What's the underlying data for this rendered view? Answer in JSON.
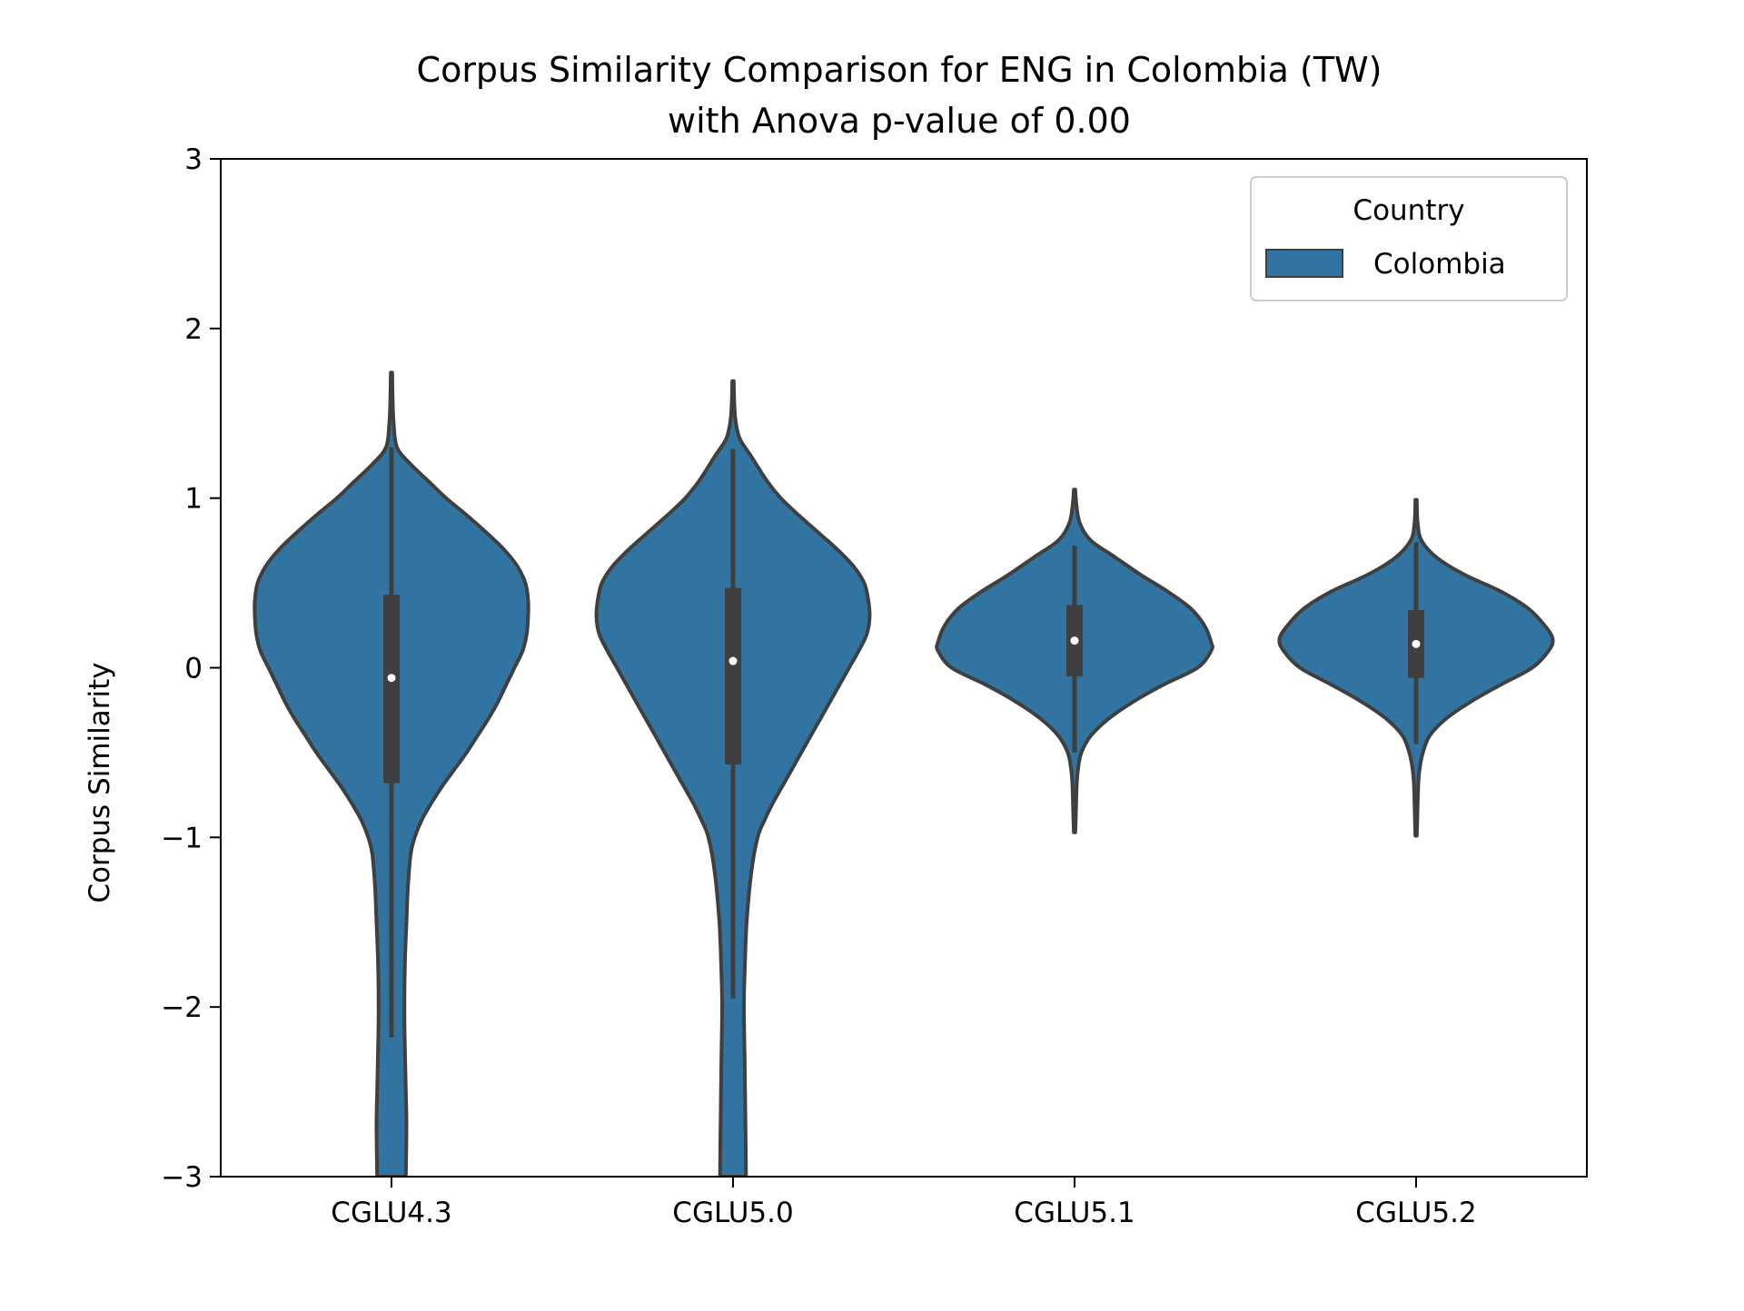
{
  "chart_data": {
    "type": "violin",
    "title_line1": "Corpus Similarity Comparison for ENG in Colombia (TW)",
    "title_line2": "with Anova p-value of 0.00",
    "xlabel": "",
    "ylabel": "Corpus Similarity",
    "ylim": [
      -3,
      3
    ],
    "yticks": [
      -3,
      -2,
      -1,
      0,
      1,
      2,
      3
    ],
    "ytick_labels": [
      "−3",
      "−2",
      "−1",
      "0",
      "1",
      "2",
      "3"
    ],
    "categories": [
      "CGLU4.3",
      "CGLU5.0",
      "CGLU5.1",
      "CGLU5.2"
    ],
    "grid": false,
    "legend": {
      "title": "Country",
      "placement": "top-right",
      "entries": [
        {
          "label": "Colombia",
          "color": "#3274a1"
        }
      ]
    },
    "colors": {
      "fill": "#3274a1",
      "edge": "#3f3f3f",
      "box": "#3f3f3f",
      "median": "#ffffff"
    },
    "violins": [
      {
        "category": "CGLU4.3",
        "profile": [
          [
            1.74,
            0.005
          ],
          [
            1.6,
            0.008
          ],
          [
            1.45,
            0.015
          ],
          [
            1.3,
            0.04
          ],
          [
            1.2,
            0.14
          ],
          [
            1.1,
            0.27
          ],
          [
            1.0,
            0.4
          ],
          [
            0.9,
            0.55
          ],
          [
            0.8,
            0.69
          ],
          [
            0.7,
            0.82
          ],
          [
            0.6,
            0.92
          ],
          [
            0.5,
            0.98
          ],
          [
            0.4,
            1.0
          ],
          [
            0.3,
            1.0
          ],
          [
            0.2,
            0.99
          ],
          [
            0.1,
            0.96
          ],
          [
            0.0,
            0.9
          ],
          [
            -0.1,
            0.84
          ],
          [
            -0.2,
            0.78
          ],
          [
            -0.3,
            0.71
          ],
          [
            -0.4,
            0.63
          ],
          [
            -0.5,
            0.55
          ],
          [
            -0.6,
            0.46
          ],
          [
            -0.7,
            0.37
          ],
          [
            -0.8,
            0.29
          ],
          [
            -0.9,
            0.22
          ],
          [
            -1.0,
            0.17
          ],
          [
            -1.1,
            0.14
          ],
          [
            -1.3,
            0.12
          ],
          [
            -1.5,
            0.11
          ],
          [
            -1.7,
            0.1
          ],
          [
            -1.9,
            0.095
          ],
          [
            -2.1,
            0.095
          ],
          [
            -2.3,
            0.1
          ],
          [
            -2.5,
            0.105
          ],
          [
            -2.7,
            0.11
          ],
          [
            -3.0,
            0.105
          ]
        ],
        "q1": -0.68,
        "median": -0.06,
        "q3": 0.43,
        "whisker_low": -2.18,
        "whisker_high": 1.3
      },
      {
        "category": "CGLU5.0",
        "profile": [
          [
            1.69,
            0.005
          ],
          [
            1.55,
            0.01
          ],
          [
            1.45,
            0.02
          ],
          [
            1.35,
            0.05
          ],
          [
            1.25,
            0.13
          ],
          [
            1.1,
            0.25
          ],
          [
            1.0,
            0.35
          ],
          [
            0.9,
            0.48
          ],
          [
            0.8,
            0.62
          ],
          [
            0.7,
            0.76
          ],
          [
            0.6,
            0.88
          ],
          [
            0.5,
            0.96
          ],
          [
            0.4,
            0.99
          ],
          [
            0.3,
            1.0
          ],
          [
            0.2,
            0.98
          ],
          [
            0.1,
            0.92
          ],
          [
            0.0,
            0.85
          ],
          [
            -0.1,
            0.78
          ],
          [
            -0.2,
            0.71
          ],
          [
            -0.3,
            0.64
          ],
          [
            -0.4,
            0.57
          ],
          [
            -0.5,
            0.5
          ],
          [
            -0.6,
            0.43
          ],
          [
            -0.7,
            0.36
          ],
          [
            -0.8,
            0.29
          ],
          [
            -0.9,
            0.23
          ],
          [
            -1.0,
            0.18
          ],
          [
            -1.2,
            0.135
          ],
          [
            -1.5,
            0.1
          ],
          [
            -1.8,
            0.085
          ],
          [
            -2.0,
            0.08
          ],
          [
            -2.3,
            0.085
          ],
          [
            -2.6,
            0.09
          ],
          [
            -3.0,
            0.095
          ]
        ],
        "q1": -0.57,
        "median": 0.04,
        "q3": 0.47,
        "whisker_low": -1.95,
        "whisker_high": 1.29
      },
      {
        "category": "CGLU5.1",
        "profile": [
          [
            1.05,
            0.005
          ],
          [
            0.95,
            0.015
          ],
          [
            0.85,
            0.04
          ],
          [
            0.75,
            0.12
          ],
          [
            0.65,
            0.3
          ],
          [
            0.55,
            0.48
          ],
          [
            0.45,
            0.68
          ],
          [
            0.35,
            0.85
          ],
          [
            0.25,
            0.95
          ],
          [
            0.15,
            1.0
          ],
          [
            0.1,
            1.0
          ],
          [
            0.0,
            0.9
          ],
          [
            -0.1,
            0.65
          ],
          [
            -0.2,
            0.43
          ],
          [
            -0.3,
            0.25
          ],
          [
            -0.4,
            0.12
          ],
          [
            -0.5,
            0.05
          ],
          [
            -0.6,
            0.025
          ],
          [
            -0.7,
            0.015
          ],
          [
            -0.85,
            0.01
          ],
          [
            -0.97,
            0.005
          ]
        ],
        "q1": -0.05,
        "median": 0.16,
        "q3": 0.37,
        "whisker_low": -0.5,
        "whisker_high": 0.72
      },
      {
        "category": "CGLU5.2",
        "profile": [
          [
            0.99,
            0.005
          ],
          [
            0.85,
            0.012
          ],
          [
            0.75,
            0.04
          ],
          [
            0.65,
            0.15
          ],
          [
            0.55,
            0.35
          ],
          [
            0.45,
            0.62
          ],
          [
            0.35,
            0.82
          ],
          [
            0.25,
            0.94
          ],
          [
            0.17,
            1.0
          ],
          [
            0.1,
            0.97
          ],
          [
            0.0,
            0.85
          ],
          [
            -0.1,
            0.62
          ],
          [
            -0.2,
            0.4
          ],
          [
            -0.3,
            0.22
          ],
          [
            -0.4,
            0.1
          ],
          [
            -0.5,
            0.05
          ],
          [
            -0.6,
            0.025
          ],
          [
            -0.7,
            0.015
          ],
          [
            -0.85,
            0.01
          ],
          [
            -0.99,
            0.005
          ]
        ],
        "q1": -0.06,
        "median": 0.14,
        "q3": 0.34,
        "whisker_low": -0.45,
        "whisker_high": 0.74
      }
    ]
  }
}
